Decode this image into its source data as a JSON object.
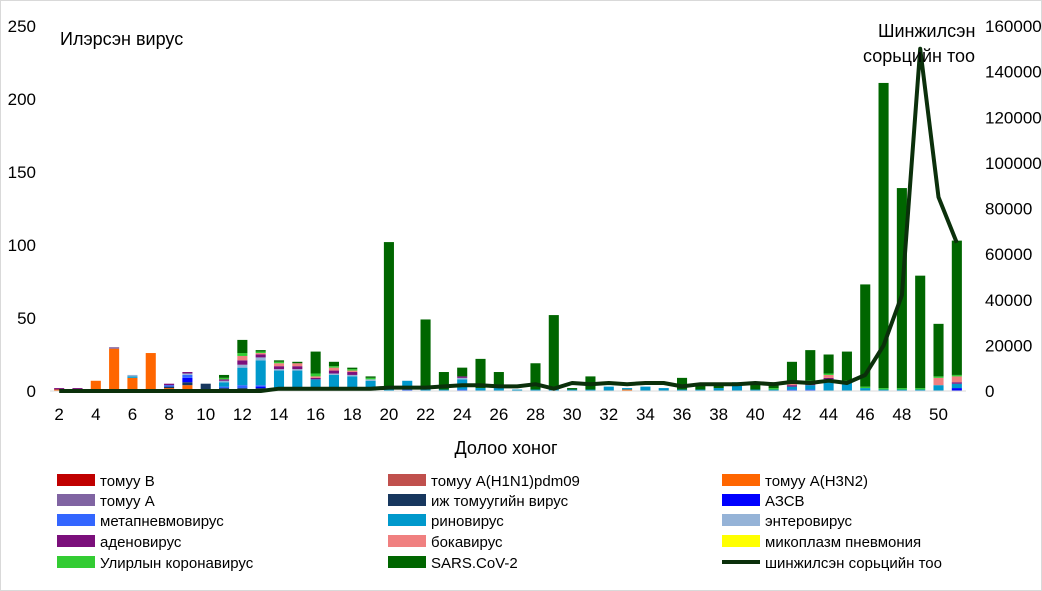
{
  "chart_data": {
    "type": "bar",
    "stacked": true,
    "left_axis_title": "Илэрсэн вирус",
    "right_axis_title_lines": [
      "Шинжилсэн",
      "сорьцийн тоо"
    ],
    "xlabel": "Долоо хоног",
    "ylim": [
      0,
      250
    ],
    "yticks": [
      0,
      50,
      100,
      150,
      200,
      250
    ],
    "y2lim": [
      0,
      160000
    ],
    "y2ticks": [
      0,
      20000,
      40000,
      60000,
      80000,
      100000,
      120000,
      140000,
      160000
    ],
    "x": [
      2,
      3,
      4,
      5,
      6,
      7,
      8,
      9,
      10,
      11,
      12,
      13,
      14,
      15,
      16,
      17,
      18,
      19,
      20,
      21,
      22,
      23,
      24,
      25,
      26,
      27,
      28,
      29,
      30,
      31,
      32,
      33,
      34,
      35,
      36,
      37,
      38,
      39,
      40,
      41,
      42,
      43,
      44,
      45,
      46,
      47,
      48,
      49,
      50,
      51
    ],
    "xtick_labels": [
      "2",
      "4",
      "6",
      "8",
      "10",
      "12",
      "14",
      "16",
      "18",
      "20",
      "22",
      "24",
      "26",
      "28",
      "30",
      "32",
      "34",
      "36",
      "38",
      "40",
      "42",
      "44",
      "46",
      "48",
      "50"
    ],
    "series": [
      {
        "name": "томуу B",
        "color": "#c00000",
        "values": [
          0,
          0,
          0,
          0,
          0,
          0,
          0,
          0,
          0,
          0,
          0,
          0,
          0,
          0,
          0,
          0,
          0,
          0,
          0,
          0,
          0,
          0,
          0,
          0,
          0,
          0,
          0,
          0,
          0,
          0,
          0,
          0,
          0,
          0,
          0,
          0,
          0,
          0,
          0,
          0,
          0,
          0,
          0,
          0,
          0,
          0,
          0,
          0,
          0,
          0
        ]
      },
      {
        "name": "томуу A(H1N1)pdm09",
        "color": "#c0504d",
        "values": [
          0,
          0,
          0,
          0,
          0,
          0,
          0,
          0,
          0,
          0,
          0,
          0,
          0,
          0,
          0,
          0,
          0,
          0,
          0,
          0,
          0,
          0,
          0,
          0,
          0,
          0,
          0,
          0,
          0,
          0,
          0,
          0,
          0,
          0,
          0,
          0,
          0,
          0,
          0,
          0,
          0,
          0,
          0,
          0,
          0,
          0,
          0,
          0,
          0,
          0
        ]
      },
      {
        "name": "томуу A(H3N2)",
        "color": "#ff6600",
        "values": [
          1,
          1,
          7,
          29,
          9,
          26,
          2,
          4,
          0,
          1,
          0,
          0,
          0,
          0,
          0,
          0,
          0,
          0,
          0,
          0,
          0,
          0,
          0,
          0,
          0,
          0,
          0,
          0,
          0,
          0,
          0,
          1,
          0,
          0,
          0,
          0,
          0,
          0,
          0,
          0,
          0,
          0,
          0,
          0,
          0,
          0,
          0,
          0,
          0,
          0
        ]
      },
      {
        "name": "томуу A",
        "color": "#8064a2",
        "values": [
          0,
          0,
          0,
          1,
          0,
          0,
          0,
          0,
          0,
          0,
          0,
          0,
          0,
          0,
          0,
          0,
          0,
          0,
          0,
          0,
          0,
          0,
          0,
          0,
          0,
          0,
          0,
          0,
          0,
          0,
          0,
          0,
          0,
          0,
          0,
          0,
          0,
          0,
          0,
          0,
          0,
          0,
          0,
          0,
          0,
          0,
          0,
          0,
          0,
          0
        ]
      },
      {
        "name": "иж томуугийн вирус",
        "color": "#17375e",
        "values": [
          0,
          0,
          0,
          0,
          0,
          0,
          1,
          2,
          5,
          1,
          2,
          2,
          1,
          1,
          1,
          1,
          0,
          0,
          0,
          0,
          0,
          0,
          0,
          0,
          0,
          0,
          0,
          0,
          0,
          0,
          0,
          0,
          0,
          0,
          0,
          0,
          0,
          0,
          0,
          0,
          0,
          0,
          0,
          0,
          0,
          0,
          0,
          0,
          0,
          0
        ]
      },
      {
        "name": "АЗСВ",
        "color": "#0000ff",
        "values": [
          0,
          0,
          0,
          0,
          0,
          0,
          0,
          3,
          0,
          0,
          0,
          1,
          0,
          0,
          0,
          0,
          0,
          0,
          0,
          0,
          0,
          0,
          0,
          0,
          0,
          0,
          0,
          0,
          0,
          0,
          0,
          0,
          0,
          0,
          0,
          0,
          0,
          0,
          0,
          0,
          0,
          0,
          0,
          0,
          0,
          0,
          0,
          0,
          0,
          2
        ]
      },
      {
        "name": "метапневмовирус",
        "color": "#3366ff",
        "values": [
          0,
          0,
          0,
          0,
          0,
          0,
          1,
          2,
          0,
          1,
          2,
          1,
          1,
          1,
          1,
          1,
          1,
          1,
          0,
          1,
          0,
          0,
          1,
          0,
          0,
          0,
          0,
          0,
          0,
          0,
          0,
          0,
          0,
          0,
          0,
          0,
          0,
          0,
          0,
          0,
          1,
          1,
          0,
          0,
          0,
          0,
          0,
          0,
          0,
          0
        ]
      },
      {
        "name": "риновирус",
        "color": "#0099cc",
        "values": [
          0,
          0,
          0,
          0,
          1,
          0,
          0,
          0,
          0,
          3,
          12,
          17,
          12,
          12,
          6,
          9,
          9,
          6,
          2,
          6,
          1,
          1,
          7,
          2,
          2,
          1,
          1,
          2,
          1,
          1,
          3,
          1,
          3,
          2,
          1,
          1,
          2,
          6,
          1,
          1,
          2,
          3,
          8,
          6,
          2,
          1,
          1,
          1,
          4,
          3
        ]
      },
      {
        "name": "энтеровирус",
        "color": "#95b3d7",
        "values": [
          0,
          0,
          0,
          0,
          1,
          0,
          0,
          1,
          0,
          1,
          2,
          2,
          1,
          1,
          0,
          1,
          1,
          1,
          0,
          0,
          0,
          0,
          1,
          0,
          0,
          0,
          0,
          0,
          0,
          0,
          0,
          0,
          0,
          0,
          0,
          0,
          0,
          0,
          0,
          0,
          0,
          0,
          0,
          0,
          0,
          0,
          0,
          0,
          0,
          0
        ]
      },
      {
        "name": "аденовирус",
        "color": "#7b0f7b",
        "values": [
          1,
          1,
          0,
          0,
          0,
          0,
          1,
          1,
          0,
          1,
          3,
          2,
          2,
          2,
          1,
          2,
          2,
          0,
          0,
          0,
          0,
          0,
          1,
          0,
          1,
          0,
          0,
          0,
          0,
          0,
          0,
          0,
          0,
          0,
          0,
          0,
          0,
          0,
          0,
          0,
          1,
          1,
          1,
          0,
          0,
          0,
          0,
          0,
          0,
          1
        ]
      },
      {
        "name": "бокавирус",
        "color": "#f08080",
        "values": [
          0,
          0,
          0,
          0,
          0,
          0,
          0,
          0,
          0,
          0,
          3,
          1,
          2,
          2,
          1,
          2,
          1,
          0,
          0,
          0,
          0,
          0,
          0,
          0,
          0,
          0,
          0,
          0,
          0,
          0,
          0,
          0,
          0,
          0,
          0,
          0,
          0,
          0,
          0,
          0,
          1,
          1,
          2,
          0,
          0,
          0,
          0,
          0,
          5,
          4
        ]
      },
      {
        "name": "микоплазм пневмония",
        "color": "#ffff00",
        "values": [
          0,
          0,
          0,
          0,
          0,
          0,
          0,
          0,
          0,
          0,
          0,
          0,
          0,
          0,
          0,
          0,
          0,
          0,
          0,
          0,
          0,
          0,
          0,
          0,
          0,
          0,
          0,
          0,
          0,
          0,
          0,
          0,
          0,
          0,
          0,
          0,
          0,
          0,
          0,
          0,
          0,
          0,
          0,
          0,
          0,
          0,
          0,
          0,
          0,
          0
        ]
      },
      {
        "name": "Улирлын коронавирус",
        "color": "#33cc33",
        "values": [
          0,
          0,
          0,
          0,
          0,
          0,
          0,
          0,
          0,
          1,
          2,
          1,
          1,
          0,
          2,
          1,
          1,
          1,
          0,
          0,
          0,
          0,
          0,
          0,
          0,
          0,
          0,
          0,
          0,
          0,
          0,
          0,
          0,
          0,
          0,
          0,
          0,
          0,
          0,
          1,
          1,
          1,
          1,
          1,
          1,
          1,
          1,
          1,
          1,
          1
        ]
      },
      {
        "name": "SARS.CoV-2",
        "color": "#006600",
        "values": [
          0,
          0,
          0,
          0,
          0,
          0,
          0,
          0,
          0,
          2,
          9,
          1,
          1,
          1,
          15,
          3,
          1,
          1,
          100,
          0,
          48,
          12,
          6,
          20,
          10,
          0,
          18,
          50,
          1,
          9,
          0,
          0,
          0,
          0,
          8,
          4,
          3,
          0,
          5,
          4,
          14,
          21,
          13,
          20,
          70,
          209,
          137,
          77,
          36,
          92
        ]
      }
    ],
    "line": {
      "name": "шинжилсэн сорьцийн тоо",
      "color": "#0b300b",
      "axis": "right",
      "values": [
        0,
        0,
        0,
        0,
        0,
        0,
        0,
        0,
        0,
        0,
        0,
        0,
        1000,
        1000,
        1000,
        1000,
        1000,
        1000,
        1500,
        1500,
        1500,
        2000,
        2500,
        2500,
        2000,
        2000,
        3000,
        1000,
        3500,
        3000,
        3500,
        3000,
        3500,
        3500,
        2000,
        3000,
        3000,
        3000,
        3500,
        3000,
        4000,
        3500,
        4500,
        3500,
        7000,
        20000,
        42000,
        150000,
        85000,
        65000
      ]
    },
    "legend_order": [
      "томуу B",
      "томуу A(H1N1)pdm09",
      "томуу A(H3N2)",
      "томуу A",
      "иж томуугийн вирус",
      "АЗСВ",
      "метапневмовирус",
      "риновирус",
      "энтеровирус",
      "аденовирус",
      "бокавирус",
      "микоплазм пневмония",
      "Улирлын коронавирус",
      "SARS.CoV-2",
      "шинжилсэн сорьцийн тоо"
    ]
  }
}
